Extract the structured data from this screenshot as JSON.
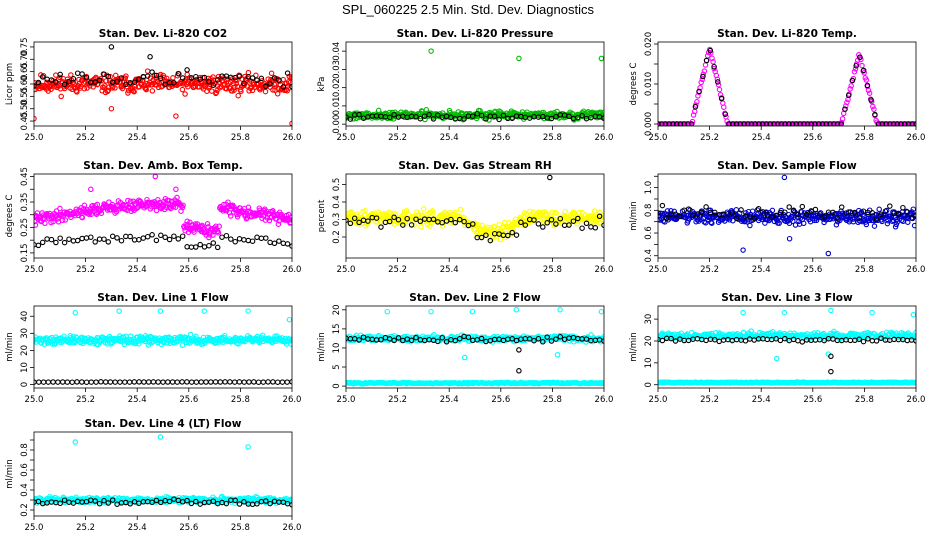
{
  "figure": {
    "title": "SPL_060225  2.5 Min. Std. Dev. Diagnostics"
  },
  "chart_data": [
    {
      "type": "scatter",
      "title": "Stan. Dev. Li-820 CO2",
      "ylabel": "Licor ppm",
      "xlim": [
        25.0,
        26.0
      ],
      "ylim": [
        0.43,
        0.77
      ],
      "xticks": [
        25.0,
        25.2,
        25.4,
        25.6,
        25.8,
        26.0
      ],
      "xtick_labels": [
        "25.0",
        "25.2",
        "25.4",
        "25.6",
        "25.8",
        "26.0"
      ],
      "yticks": [
        0.45,
        0.5,
        0.55,
        0.6,
        0.65,
        0.7,
        0.75
      ],
      "ytick_labels": [
        "0.45",
        "0.50",
        "0.55",
        "0.60",
        "0.65",
        "0.70",
        "0.75"
      ],
      "series": [
        {
          "color": "#ff0000",
          "pattern": "noise",
          "mean": 0.6,
          "amp": 0.055,
          "n": 380,
          "seed": 11,
          "extra": [
            [
              25.0,
              0.46
            ],
            [
              26.0,
              0.44
            ],
            [
              25.55,
              0.47
            ],
            [
              25.3,
              0.5
            ]
          ]
        },
        {
          "color": "#000000",
          "pattern": "noise",
          "mean": 0.62,
          "amp": 0.05,
          "n": 60,
          "seed": 12,
          "extra": [
            [
              25.3,
              0.75
            ],
            [
              25.45,
              0.71
            ]
          ]
        }
      ]
    },
    {
      "type": "scatter",
      "title": "Stan. Dev. Li-820 Pressure",
      "ylabel": "kPa",
      "xlim": [
        25.0,
        26.0
      ],
      "ylim": [
        -0.001,
        0.045
      ],
      "xticks": [
        25.0,
        25.2,
        25.4,
        25.6,
        25.8,
        26.0
      ],
      "xtick_labels": [
        "25.0",
        "25.2",
        "25.4",
        "25.6",
        "25.8",
        "26.0"
      ],
      "yticks": [
        0.0,
        0.01,
        0.02,
        0.03,
        0.04
      ],
      "ytick_labels": [
        "0.00",
        "0.01",
        "0.02",
        "0.03",
        "0.04"
      ],
      "series": [
        {
          "color": "#00bb00",
          "pattern": "noise",
          "mean": 0.005,
          "amp": 0.003,
          "n": 380,
          "seed": 21,
          "extra": [
            [
              25.33,
              0.04
            ],
            [
              25.67,
              0.036
            ],
            [
              25.99,
              0.036
            ]
          ]
        },
        {
          "color": "#000000",
          "pattern": "noise",
          "mean": 0.004,
          "amp": 0.002,
          "n": 60,
          "seed": 22,
          "extra": []
        }
      ]
    },
    {
      "type": "scatter",
      "title": "Stan. Dev. Li-820 Temp.",
      "ylabel": "degrees C",
      "xlim": [
        25.0,
        26.0
      ],
      "ylim": [
        -0.0005,
        0.0205
      ],
      "xticks": [
        25.0,
        25.2,
        25.4,
        25.6,
        25.8,
        26.0
      ],
      "xtick_labels": [
        "25.0",
        "25.2",
        "25.4",
        "25.6",
        "25.8",
        "26.0"
      ],
      "yticks": [
        0.0,
        0.005,
        0.01,
        0.015,
        0.02
      ],
      "ytick_labels": [
        "0.000",
        "",
        "0.010",
        "",
        "0.020"
      ],
      "series": [
        {
          "color": "#ff00ff",
          "pattern": "peaks",
          "peaks": [
            [
              25.2,
              0.019,
              0.07
            ],
            [
              25.78,
              0.0175,
              0.07
            ]
          ],
          "n": 240,
          "seed": 31,
          "extra": []
        },
        {
          "color": "#000000",
          "pattern": "peaks",
          "peaks": [
            [
              25.2,
              0.019,
              0.07
            ],
            [
              25.78,
              0.0175,
              0.07
            ]
          ],
          "n": 70,
          "seed": 32,
          "extra": []
        }
      ]
    },
    {
      "type": "scatter",
      "title": "Stan. Dev. Amb. Box Temp.",
      "ylabel": "degrees C",
      "xlim": [
        25.0,
        26.0
      ],
      "ylim": [
        0.13,
        0.46
      ],
      "xticks": [
        25.0,
        25.2,
        25.4,
        25.6,
        25.8,
        26.0
      ],
      "xtick_labels": [
        "25.0",
        "25.2",
        "25.4",
        "25.6",
        "25.8",
        "26.0"
      ],
      "yticks": [
        0.15,
        0.2,
        0.25,
        0.3,
        0.35,
        0.4,
        0.45
      ],
      "ytick_labels": [
        "0.15",
        "",
        "0.25",
        "",
        "0.35",
        "",
        "0.45"
      ],
      "series": [
        {
          "color": "#ff00ff",
          "pattern": "wave",
          "base": 0.28,
          "wamp": 0.06,
          "amp": 0.035,
          "n": 380,
          "seed": 41,
          "extra": [
            [
              25.47,
              0.45
            ],
            [
              25.55,
              0.4
            ],
            [
              25.22,
              0.4
            ]
          ]
        },
        {
          "color": "#000000",
          "pattern": "wave",
          "base": 0.19,
          "wamp": 0.02,
          "amp": 0.02,
          "n": 60,
          "seed": 42,
          "extra": []
        }
      ]
    },
    {
      "type": "scatter",
      "title": "Stan. Dev. Gas Stream RH",
      "ylabel": "percent",
      "xlim": [
        25.0,
        26.0
      ],
      "ylim": [
        0.08,
        0.56
      ],
      "xticks": [
        25.0,
        25.2,
        25.4,
        25.6,
        25.8,
        26.0
      ],
      "xtick_labels": [
        "25.0",
        "25.2",
        "25.4",
        "25.6",
        "25.8",
        "26.0"
      ],
      "yticks": [
        0.2,
        0.3,
        0.4,
        0.5
      ],
      "ytick_labels": [
        "0.2",
        "0.3",
        "0.4",
        "0.5"
      ],
      "series": [
        {
          "color": "#ffff00",
          "pattern": "dip",
          "base": 0.31,
          "amp": 0.06,
          "n": 380,
          "seed": 51,
          "extra": []
        },
        {
          "color": "#000000",
          "pattern": "dip",
          "base": 0.29,
          "amp": 0.05,
          "n": 60,
          "seed": 52,
          "extra": [
            [
              25.79,
              0.54
            ]
          ]
        }
      ]
    },
    {
      "type": "scatter",
      "title": "Stan. Dev. Sample Flow",
      "ylabel": "ml/min",
      "xlim": [
        25.0,
        26.0
      ],
      "ylim": [
        0.38,
        1.12
      ],
      "xticks": [
        25.0,
        25.2,
        25.4,
        25.6,
        25.8,
        26.0
      ],
      "xtick_labels": [
        "25.0",
        "25.2",
        "25.4",
        "25.6",
        "25.8",
        "26.0"
      ],
      "yticks": [
        0.4,
        0.5,
        0.6,
        0.7,
        0.8,
        0.9,
        1.0,
        1.1
      ],
      "ytick_labels": [
        "0.4",
        "",
        "0.6",
        "",
        "0.8",
        "",
        "1.0",
        ""
      ],
      "series": [
        {
          "color": "#0000cc",
          "pattern": "noise",
          "mean": 0.74,
          "amp": 0.09,
          "n": 380,
          "seed": 61,
          "extra": [
            [
              25.49,
              1.09
            ],
            [
              25.33,
              0.45
            ],
            [
              25.66,
              0.42
            ],
            [
              25.51,
              0.55
            ]
          ]
        },
        {
          "color": "#000000",
          "pattern": "noise",
          "mean": 0.78,
          "amp": 0.08,
          "n": 60,
          "seed": 62,
          "extra": []
        }
      ]
    },
    {
      "type": "scatter",
      "title": "Stan. Dev. Line 1 Flow",
      "ylabel": "ml/min",
      "xlim": [
        25.0,
        26.0
      ],
      "ylim": [
        -2,
        46
      ],
      "xticks": [
        25.0,
        25.2,
        25.4,
        25.6,
        25.8,
        26.0
      ],
      "xtick_labels": [
        "25.0",
        "25.2",
        "25.4",
        "25.6",
        "25.8",
        "26.0"
      ],
      "yticks": [
        0,
        10,
        20,
        30,
        40
      ],
      "ytick_labels": [
        "0",
        "10",
        "20",
        "30",
        "40"
      ],
      "series": [
        {
          "color": "#00ffff",
          "pattern": "noise",
          "mean": 26,
          "amp": 3.5,
          "n": 380,
          "seed": 71,
          "extra": [
            [
              25.16,
              42
            ],
            [
              25.33,
              43
            ],
            [
              25.49,
              43
            ],
            [
              25.66,
              43
            ],
            [
              25.83,
              43
            ],
            [
              25.99,
              38
            ]
          ]
        },
        {
          "color": "#000000",
          "pattern": "flat",
          "mean": 1.5,
          "amp": 0.2,
          "n": 55,
          "seed": 72,
          "extra": []
        }
      ]
    },
    {
      "type": "scatter",
      "title": "Stan. Dev. Line 2 Flow",
      "ylabel": "ml/min",
      "xlim": [
        25.0,
        26.0
      ],
      "ylim": [
        -0.5,
        21
      ],
      "xticks": [
        25.0,
        25.2,
        25.4,
        25.6,
        25.8,
        26.0
      ],
      "xtick_labels": [
        "25.0",
        "25.2",
        "25.4",
        "25.6",
        "25.8",
        "26.0"
      ],
      "yticks": [
        0,
        5,
        10,
        15,
        20
      ],
      "ytick_labels": [
        "0",
        "5",
        "10",
        "15",
        "20"
      ],
      "series": [
        {
          "color": "#00ffff",
          "pattern": "noise",
          "mean": 12.5,
          "amp": 1.2,
          "n": 300,
          "seed": 81,
          "extra": [
            [
              25.16,
              19.5
            ],
            [
              25.33,
              19.5
            ],
            [
              25.49,
              19.5
            ],
            [
              25.66,
              20
            ],
            [
              25.83,
              20
            ],
            [
              25.99,
              19.5
            ],
            [
              25.46,
              7.5
            ],
            [
              25.82,
              8.2
            ]
          ]
        },
        {
          "color": "#00ffff",
          "pattern": "flat",
          "mean": 0.8,
          "amp": 0.25,
          "n": 240,
          "seed": 83,
          "extra": []
        },
        {
          "color": "#000000",
          "pattern": "noise",
          "mean": 12.3,
          "amp": 0.9,
          "n": 60,
          "seed": 82,
          "extra": [
            [
              25.67,
              9.5
            ],
            [
              25.67,
              4
            ]
          ]
        }
      ]
    },
    {
      "type": "scatter",
      "title": "Stan. Dev. Line 3 Flow",
      "ylabel": "ml/min",
      "xlim": [
        25.0,
        26.0
      ],
      "ylim": [
        -1.5,
        36
      ],
      "xticks": [
        25.0,
        25.2,
        25.4,
        25.6,
        25.8,
        26.0
      ],
      "xtick_labels": [
        "25.0",
        "25.2",
        "25.4",
        "25.6",
        "25.8",
        "26.0"
      ],
      "yticks": [
        0,
        10,
        20,
        30
      ],
      "ytick_labels": [
        "0",
        "10",
        "20",
        "30"
      ],
      "series": [
        {
          "color": "#00ffff",
          "pattern": "noise",
          "mean": 22.5,
          "amp": 2.2,
          "n": 300,
          "seed": 91,
          "extra": [
            [
              25.33,
              33
            ],
            [
              25.49,
              33
            ],
            [
              25.67,
              34
            ],
            [
              25.83,
              33
            ],
            [
              25.99,
              32
            ],
            [
              25.46,
              12
            ],
            [
              25.66,
              14
            ]
          ]
        },
        {
          "color": "#00ffff",
          "pattern": "flat",
          "mean": 1.0,
          "amp": 0.3,
          "n": 240,
          "seed": 93,
          "extra": []
        },
        {
          "color": "#000000",
          "pattern": "noise",
          "mean": 20.5,
          "amp": 1.4,
          "n": 60,
          "seed": 92,
          "extra": [
            [
              25.67,
              13
            ],
            [
              25.67,
              6
            ]
          ]
        }
      ]
    },
    {
      "type": "scatter",
      "title": "Stan. Dev. Line 4 (LT) Flow",
      "ylabel": "ml/min",
      "xlim": [
        25.0,
        26.0
      ],
      "ylim": [
        0.14,
        0.98
      ],
      "xticks": [
        25.0,
        25.2,
        25.4,
        25.6,
        25.8,
        26.0
      ],
      "xtick_labels": [
        "25.0",
        "25.2",
        "25.4",
        "25.6",
        "25.8",
        "26.0"
      ],
      "yticks": [
        0.2,
        0.3,
        0.4,
        0.5,
        0.6,
        0.7,
        0.8,
        0.9
      ],
      "ytick_labels": [
        "0.2",
        "",
        "0.4",
        "",
        "0.6",
        "",
        "0.8",
        ""
      ],
      "series": [
        {
          "color": "#00ffff",
          "pattern": "noise",
          "mean": 0.3,
          "amp": 0.04,
          "n": 380,
          "seed": 101,
          "extra": [
            [
              25.16,
              0.88
            ],
            [
              25.49,
              0.93
            ],
            [
              25.83,
              0.83
            ]
          ]
        },
        {
          "color": "#000000",
          "pattern": "noise",
          "mean": 0.28,
          "amp": 0.035,
          "n": 60,
          "seed": 102,
          "extra": []
        }
      ]
    }
  ]
}
